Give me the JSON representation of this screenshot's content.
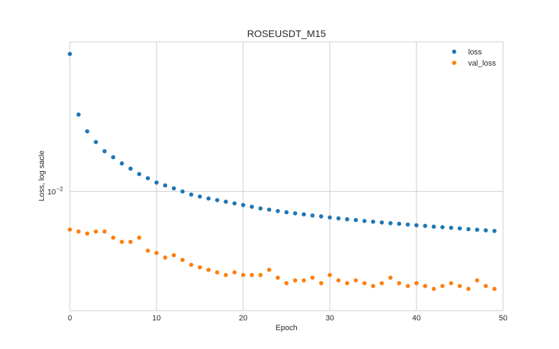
{
  "chart_data": {
    "type": "scatter",
    "title": "ROSEUSDT_M15",
    "xlabel": "Epoch",
    "ylabel": "Loss, log sacle",
    "xlim": [
      0,
      50
    ],
    "ylim": [
      0.0046,
      0.0265
    ],
    "yscale": "log",
    "grid": true,
    "legend_position": "top-right",
    "x_ticks": [
      0,
      10,
      20,
      30,
      40,
      50
    ],
    "y_ticks": [
      {
        "value": 0.01,
        "label": "10−2"
      }
    ],
    "x": [
      0,
      1,
      2,
      3,
      4,
      5,
      6,
      7,
      8,
      9,
      10,
      11,
      12,
      13,
      14,
      15,
      16,
      17,
      18,
      19,
      20,
      21,
      22,
      23,
      24,
      25,
      26,
      27,
      28,
      29,
      30,
      31,
      32,
      33,
      34,
      35,
      36,
      37,
      38,
      39,
      40,
      41,
      42,
      43,
      44,
      45,
      46,
      47,
      48,
      49
    ],
    "series": [
      {
        "name": "loss",
        "color": "#1f77b4",
        "values": [
          0.0245,
          0.0165,
          0.0148,
          0.0138,
          0.013,
          0.0125,
          0.012,
          0.0116,
          0.0112,
          0.0109,
          0.0106,
          0.0104,
          0.0102,
          0.01,
          0.0098,
          0.00967,
          0.00955,
          0.00945,
          0.00935,
          0.00925,
          0.00915,
          0.00905,
          0.00895,
          0.00888,
          0.0088,
          0.00873,
          0.00867,
          0.00861,
          0.00855,
          0.0085,
          0.00844,
          0.00839,
          0.00834,
          0.0083,
          0.00825,
          0.00821,
          0.00817,
          0.00813,
          0.0081,
          0.00806,
          0.00802,
          0.00799,
          0.00795,
          0.00792,
          0.00789,
          0.00786,
          0.00782,
          0.00779,
          0.00776,
          0.00773
        ]
      },
      {
        "name": "val_loss",
        "color": "#ff7f0e",
        "values": [
          0.0078,
          0.0077,
          0.0076,
          0.0077,
          0.0077,
          0.0074,
          0.0072,
          0.0072,
          0.0074,
          0.0068,
          0.0067,
          0.0065,
          0.0066,
          0.0064,
          0.0062,
          0.0061,
          0.006,
          0.0059,
          0.0058,
          0.0059,
          0.0058,
          0.0058,
          0.0058,
          0.006,
          0.0057,
          0.0055,
          0.0056,
          0.0056,
          0.0057,
          0.0055,
          0.0058,
          0.0056,
          0.0055,
          0.0056,
          0.0055,
          0.0054,
          0.0055,
          0.0057,
          0.0055,
          0.0054,
          0.0055,
          0.0054,
          0.0053,
          0.0054,
          0.0055,
          0.0054,
          0.0053,
          0.0056,
          0.0054,
          0.0053
        ]
      }
    ]
  }
}
